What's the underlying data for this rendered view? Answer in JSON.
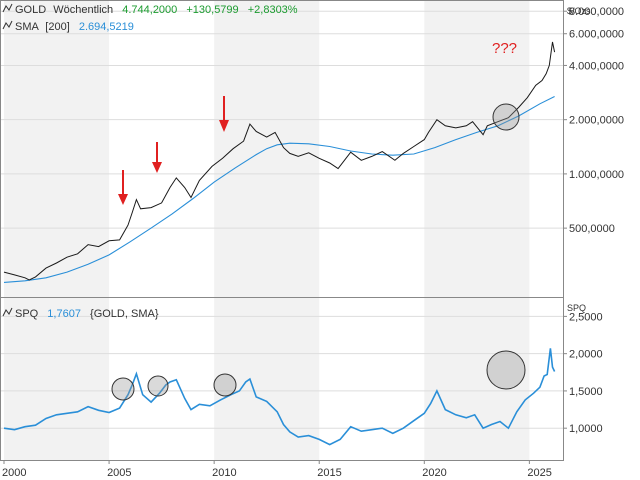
{
  "colors": {
    "price": "#1a1a1a",
    "sma": "#2a8fd8",
    "spq": "#2a8fd8",
    "header_value": "#1b9b2f",
    "header_sma_value": "#2a8fd8",
    "arrow": "#e02020",
    "question": "#e02020",
    "band": "#f2f2f2",
    "frame": "#888888"
  },
  "header": {
    "main_name": "GOLD",
    "main_interval": "Wöchentlich",
    "main_last": "4.744,2000",
    "main_change": "+130,5799",
    "main_change_pct": "+2,8303%",
    "sma_label": "SMA",
    "sma_period": "[200]",
    "sma_value": "2.694,5219",
    "spq_label": "SPQ",
    "spq_value": "1,7607",
    "spq_params": "{GOLD, SMA}"
  },
  "annotation": {
    "question_text": "???"
  },
  "chart_data": [
    {
      "type": "line",
      "title": "GOLD Wöchentlich",
      "unit": "$/Ozs",
      "y_scale": "log",
      "ylim": [
        210,
        9000
      ],
      "xlim": [
        2000,
        2026.6
      ],
      "y_ticks": [
        500,
        1000,
        2000,
        4000,
        6000,
        8000
      ],
      "y_tick_labels": [
        "500,0000",
        "1.000,0000",
        "2.000,0000",
        "4.000,0000",
        "6.000,0000",
        "8.000,0000"
      ],
      "legend": "top-left",
      "series": [
        {
          "name": "GOLD",
          "x": [
            2000.0,
            2000.5,
            2001.0,
            2001.2,
            2001.5,
            2002.0,
            2002.5,
            2003.0,
            2003.5,
            2004.0,
            2004.5,
            2005.0,
            2005.5,
            2005.9,
            2006.1,
            2006.3,
            2006.5,
            2007.0,
            2007.5,
            2007.9,
            2008.2,
            2008.6,
            2008.9,
            2009.3,
            2009.9,
            2010.4,
            2010.9,
            2011.4,
            2011.7,
            2012.0,
            2012.5,
            2012.9,
            2013.3,
            2013.6,
            2014.0,
            2014.5,
            2015.0,
            2015.5,
            2015.9,
            2016.5,
            2017.0,
            2017.5,
            2018.0,
            2018.6,
            2019.0,
            2019.5,
            2020.0,
            2020.2,
            2020.6,
            2021.0,
            2021.5,
            2022.0,
            2022.3,
            2022.8,
            2023.0,
            2023.5,
            2024.0,
            2024.5,
            2024.9,
            2025.3,
            2025.6,
            2025.8,
            2025.95,
            2026.1,
            2026.2
          ],
          "values": [
            285,
            275,
            265,
            258,
            268,
            300,
            320,
            345,
            360,
            405,
            395,
            425,
            430,
            520,
            610,
            720,
            640,
            650,
            690,
            840,
            950,
            840,
            740,
            920,
            1100,
            1220,
            1380,
            1520,
            1890,
            1720,
            1600,
            1700,
            1400,
            1300,
            1250,
            1310,
            1220,
            1150,
            1070,
            1320,
            1190,
            1250,
            1330,
            1190,
            1300,
            1420,
            1550,
            1700,
            2000,
            1850,
            1800,
            1850,
            1950,
            1650,
            1850,
            1950,
            2050,
            2350,
            2650,
            3100,
            3300,
            3600,
            4000,
            5400,
            4744
          ]
        },
        {
          "name": "SMA [200]",
          "x": [
            2000.0,
            2001.0,
            2002.0,
            2003.0,
            2004.0,
            2005.0,
            2006.0,
            2007.0,
            2008.0,
            2009.0,
            2010.0,
            2011.0,
            2012.0,
            2012.5,
            2013.0,
            2013.6,
            2014.5,
            2015.5,
            2016.5,
            2017.5,
            2018.5,
            2019.5,
            2020.5,
            2021.5,
            2022.5,
            2023.5,
            2024.5,
            2025.5,
            2026.2
          ],
          "values": [
            250,
            255,
            265,
            285,
            315,
            355,
            420,
            500,
            600,
            730,
            900,
            1080,
            1280,
            1380,
            1450,
            1480,
            1470,
            1420,
            1340,
            1290,
            1270,
            1290,
            1400,
            1550,
            1700,
            1850,
            2100,
            2450,
            2690
          ]
        }
      ]
    },
    {
      "type": "line",
      "title": "SPQ {GOLD, SMA}",
      "unit": "SPQ",
      "ylim": [
        0.6,
        2.72
      ],
      "xlim": [
        2000,
        2026.6
      ],
      "y_ticks": [
        1.0,
        1.5,
        2.0,
        2.5
      ],
      "y_tick_labels": [
        "1,0000",
        "1,5000",
        "2,0000",
        "2,5000"
      ],
      "x_ticks": [
        2000,
        2005,
        2010,
        2015,
        2020,
        2025
      ],
      "x_tick_labels": [
        "2000",
        "2005",
        "2010",
        "2015",
        "2020",
        "2025"
      ],
      "series": [
        {
          "name": "SPQ",
          "x": [
            2000.0,
            2000.5,
            2001.0,
            2001.5,
            2002.0,
            2002.5,
            2003.0,
            2003.5,
            2004.0,
            2004.5,
            2005.0,
            2005.5,
            2005.9,
            2006.1,
            2006.3,
            2006.6,
            2007.0,
            2007.4,
            2007.7,
            2007.9,
            2008.2,
            2008.6,
            2008.9,
            2009.3,
            2009.8,
            2010.3,
            2010.8,
            2011.2,
            2011.5,
            2011.7,
            2012.0,
            2012.5,
            2013.0,
            2013.3,
            2013.6,
            2014.0,
            2014.5,
            2015.0,
            2015.5,
            2016.0,
            2016.5,
            2017.0,
            2017.5,
            2018.0,
            2018.5,
            2019.0,
            2019.5,
            2020.0,
            2020.3,
            2020.6,
            2021.0,
            2021.5,
            2022.0,
            2022.4,
            2022.8,
            2023.2,
            2023.6,
            2024.0,
            2024.4,
            2024.8,
            2025.2,
            2025.5,
            2025.7,
            2025.85,
            2026.0,
            2026.1,
            2026.2
          ],
          "values": [
            1.0,
            0.98,
            1.02,
            1.04,
            1.13,
            1.18,
            1.2,
            1.22,
            1.29,
            1.24,
            1.21,
            1.27,
            1.45,
            1.58,
            1.73,
            1.45,
            1.35,
            1.47,
            1.58,
            1.62,
            1.65,
            1.4,
            1.25,
            1.32,
            1.3,
            1.38,
            1.45,
            1.5,
            1.62,
            1.66,
            1.42,
            1.36,
            1.22,
            1.05,
            0.95,
            0.88,
            0.9,
            0.85,
            0.78,
            0.85,
            1.02,
            0.96,
            0.98,
            1.0,
            0.93,
            1.0,
            1.1,
            1.2,
            1.33,
            1.5,
            1.25,
            1.18,
            1.14,
            1.18,
            1.0,
            1.05,
            1.09,
            1.0,
            1.22,
            1.38,
            1.47,
            1.55,
            1.7,
            1.72,
            2.07,
            1.82,
            1.76
          ]
        }
      ]
    }
  ]
}
